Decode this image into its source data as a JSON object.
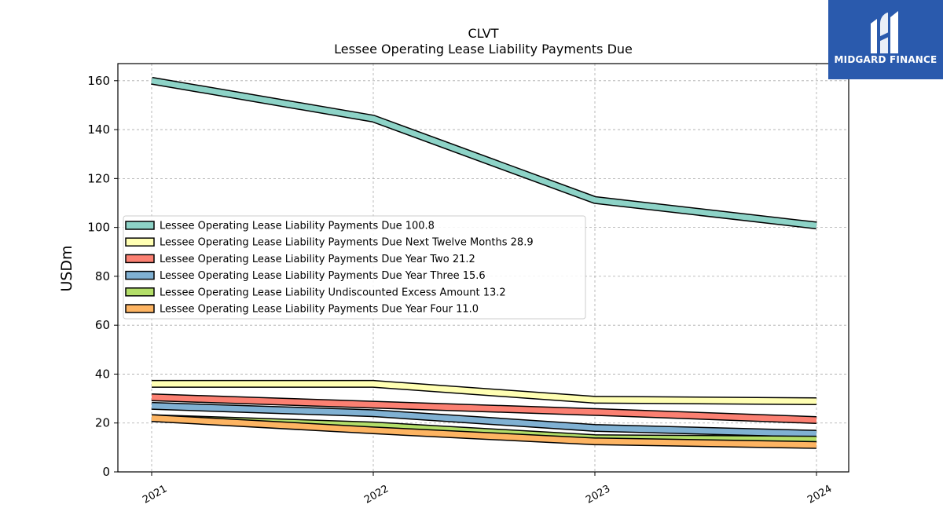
{
  "chart_data": {
    "type": "line",
    "title": "CLVT",
    "subtitle": "Lessee Operating Lease Liability Payments Due",
    "ylabel": "USDm",
    "ylim": [
      0,
      167
    ],
    "yticks": [
      0,
      20,
      40,
      60,
      80,
      100,
      120,
      140,
      160
    ],
    "x": [
      "2021",
      "2022",
      "2023",
      "2024"
    ],
    "grid": true,
    "legend_position": "center-left",
    "series": [
      {
        "name": "Lessee Operating Lease Liability Payments Due",
        "latest": "100.8",
        "color": "#8dd3c7",
        "values": [
          160.0,
          144.5,
          111.2,
          100.8
        ]
      },
      {
        "name": "Lessee Operating Lease Liability Payments Due Next Twelve Months",
        "latest": "28.9",
        "color": "#ffffb3",
        "values": [
          36.0,
          36.0,
          29.5,
          28.9
        ]
      },
      {
        "name": "Lessee Operating Lease Liability Payments Due Year Two",
        "latest": "21.2",
        "color": "#fb8072",
        "values": [
          30.5,
          27.5,
          24.5,
          21.2
        ]
      },
      {
        "name": "Lessee Operating Lease Liability Payments Due Year Three",
        "latest": "15.6",
        "color": "#80b1d3",
        "values": [
          27.0,
          24.0,
          18.0,
          15.6
        ]
      },
      {
        "name": "Lessee Operating Lease Liability Undiscounted Excess Amount",
        "latest": "13.2",
        "color": "#b3de69",
        "values": [
          22.0,
          19.0,
          13.8,
          13.2
        ]
      },
      {
        "name": "Lessee Operating Lease Liability Payments Due Year Four",
        "latest": "11.0",
        "color": "#fdb462",
        "values": [
          22.0,
          17.0,
          12.5,
          11.0
        ]
      }
    ]
  },
  "logo": {
    "text": "MIDGARD FINANCE"
  }
}
